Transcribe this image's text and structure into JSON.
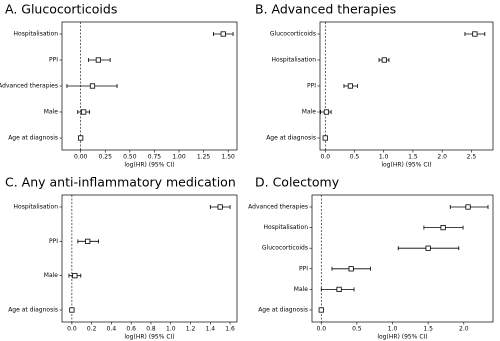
{
  "chart_data": [
    {
      "type": "forest",
      "title": "A. Glucocorticoids",
      "xlabel": "log(HR) (95% CI)",
      "categories": [
        "Hospitalisation",
        "PPI",
        "Advanced therapies",
        "Male",
        "Age at diagnosis"
      ],
      "values": [
        1.45,
        0.18,
        0.12,
        0.03,
        0.0
      ],
      "lower": [
        1.35,
        0.08,
        -0.14,
        -0.03,
        0.0
      ],
      "upper": [
        1.55,
        0.3,
        0.37,
        0.09,
        0.0
      ],
      "xlim": [
        -0.19,
        1.59
      ],
      "xticks": [
        {
          "value": 0,
          "label": "0.00"
        },
        0.25,
        {
          "value": 0.5,
          "label": "0.50"
        },
        0.75,
        {
          "value": 1,
          "label": "1.00"
        },
        1.25,
        {
          "value": 1.5,
          "label": "1.50"
        }
      ],
      "reference_line": 0,
      "color": "#000000"
    },
    {
      "type": "forest",
      "title": "B. Advanced therapies",
      "xlabel": "log(HR) (95% CI)",
      "categories": [
        "Glucocorticoids",
        "Hospitalisation",
        "PPI",
        "Male",
        "Age at diagnosis"
      ],
      "values": [
        2.56,
        1.01,
        0.43,
        0.02,
        0.0
      ],
      "lower": [
        2.39,
        0.92,
        0.32,
        -0.08,
        0.0
      ],
      "upper": [
        2.73,
        1.09,
        0.55,
        0.1,
        0.0
      ],
      "xlim": [
        -0.09,
        2.87
      ],
      "xticks": [
        {
          "value": 0,
          "label": "0.0"
        },
        0.5,
        {
          "value": 1,
          "label": "1.0"
        },
        1.5,
        {
          "value": 2,
          "label": "2.0"
        },
        2.5
      ],
      "reference_line": 0,
      "color": "#000000"
    },
    {
      "type": "forest",
      "title": "C. Any anti-inflammatory medication",
      "xlabel": "log(HR) (95% CI)",
      "categories": [
        "Hospitalisation",
        "PPI",
        "Male",
        "Age at diagnosis"
      ],
      "values": [
        1.5,
        0.16,
        0.03,
        0.0
      ],
      "lower": [
        1.4,
        0.06,
        -0.03,
        0.0
      ],
      "upper": [
        1.6,
        0.27,
        0.09,
        0.0
      ],
      "xlim": [
        -0.1,
        1.67
      ],
      "xticks": [
        {
          "value": 0,
          "label": "0.0"
        },
        0.2,
        0.4,
        0.6,
        0.8,
        {
          "value": 1,
          "label": "1.0"
        },
        1.2,
        1.4,
        1.6
      ],
      "reference_line": 0,
      "color": "#000000"
    },
    {
      "type": "forest",
      "title": "D. Colectomy",
      "xlabel": "log(HR) (95% CI)",
      "categories": [
        "Advanced therapies",
        "Hospitalisation",
        "Glucocorticoids",
        "PPI",
        "Male",
        "Age at diagnosis"
      ],
      "values": [
        2.06,
        1.71,
        1.5,
        0.42,
        0.25,
        0.0
      ],
      "lower": [
        1.81,
        1.44,
        1.08,
        0.15,
        0.0,
        0.0
      ],
      "upper": [
        2.34,
        1.99,
        1.93,
        0.69,
        0.46,
        0.0
      ],
      "xlim": [
        -0.13,
        2.41
      ],
      "xticks": [
        {
          "value": 0,
          "label": "0.0"
        },
        0.5,
        {
          "value": 1,
          "label": "1.0"
        },
        1.5,
        {
          "value": 2,
          "label": "2.0"
        }
      ],
      "reference_line": 0,
      "color": "#000000"
    }
  ]
}
